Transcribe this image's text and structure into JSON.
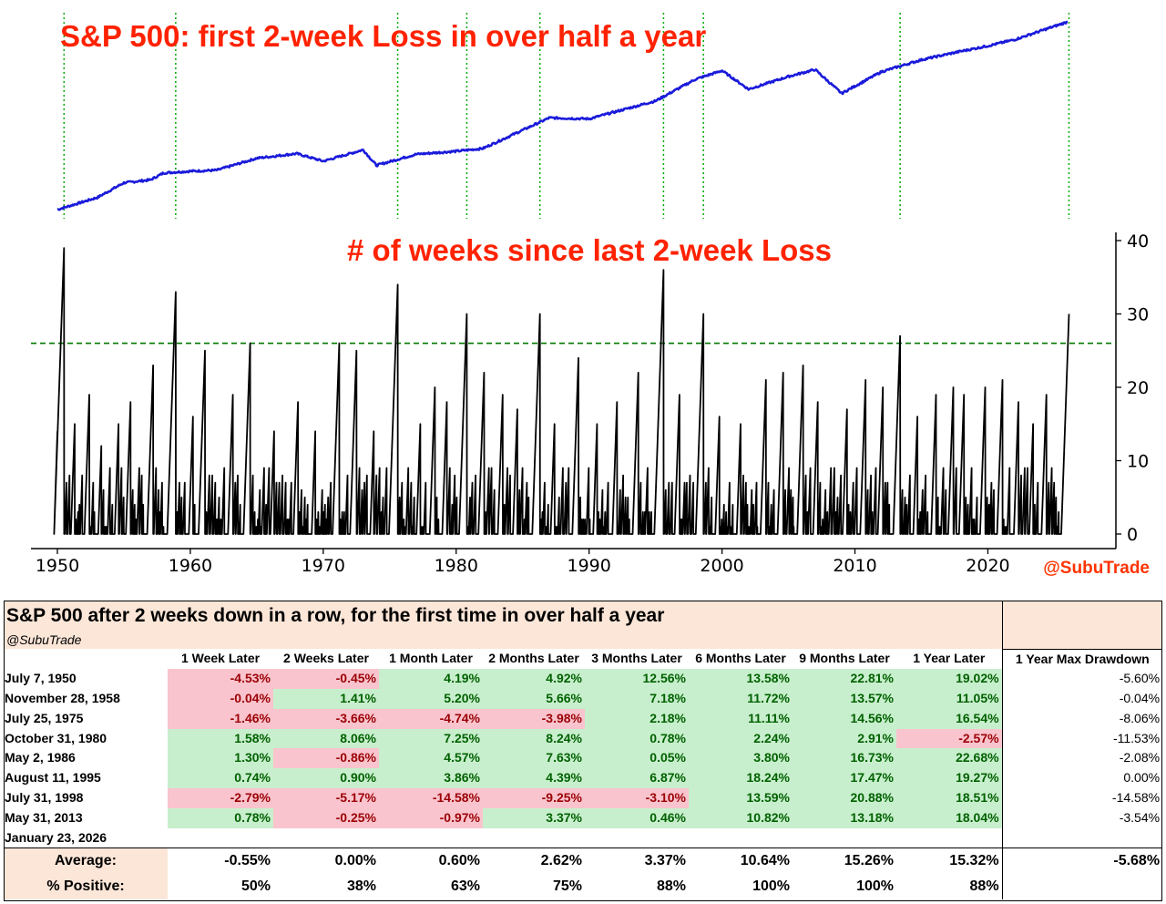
{
  "top_title": "S&P 500: first 2-week Loss in over half a year",
  "mid_title": "# of weeks since last 2-week Loss",
  "credit": "@SubuTrade",
  "colors": {
    "title": "#ff2200",
    "price_line": "#1a1adb",
    "weeks_line": "#000000",
    "vline": "#00aa00",
    "threshold": "#007700",
    "pos_bg": "#c8efcd",
    "neg_bg": "#f9c4cd",
    "header_bg": "#fbe6d8"
  },
  "chart_data": [
    {
      "type": "line",
      "title": "S&P 500: first 2-week Loss in over half a year",
      "yscale": "log",
      "xlim": [
        1950,
        2026
      ],
      "series": [
        {
          "name": "S&P 500",
          "x": [
            1950,
            1953,
            1955,
            1957,
            1958,
            1960,
            1962,
            1965,
            1968,
            1970,
            1973,
            1974,
            1977,
            1980,
            1982,
            1987,
            1990,
            1995,
            1998,
            2000,
            2002,
            2005,
            2007,
            2009,
            2012,
            2015,
            2018,
            2020,
            2022,
            2026
          ],
          "y": [
            17,
            25,
            40,
            44,
            55,
            58,
            60,
            88,
            102,
            80,
            115,
            70,
            100,
            110,
            120,
            320,
            310,
            550,
            1100,
            1450,
            800,
            1200,
            1500,
            700,
            1400,
            2050,
            2700,
            3200,
            3900,
            6900
          ]
        }
      ],
      "event_markers": [
        1950.5,
        1958.9,
        1975.6,
        1980.8,
        1986.3,
        1995.6,
        1998.6,
        2013.4,
        2026.1
      ]
    },
    {
      "type": "line",
      "title": "# of weeks since last 2-week Loss",
      "xlim": [
        1950,
        2026
      ],
      "ylim": [
        0,
        40
      ],
      "xticks": [
        "1950",
        "1960",
        "1970",
        "1980",
        "1990",
        "2000",
        "2010",
        "2020"
      ],
      "yticks": [
        "0",
        "10",
        "20",
        "30",
        "40"
      ],
      "threshold": 26,
      "peaks": [
        {
          "x": 1950.5,
          "y": 39
        },
        {
          "x": 1951.3,
          "y": 15
        },
        {
          "x": 1952.4,
          "y": 19
        },
        {
          "x": 1953.3,
          "y": 12
        },
        {
          "x": 1954.6,
          "y": 15
        },
        {
          "x": 1955.5,
          "y": 18
        },
        {
          "x": 1957.2,
          "y": 23
        },
        {
          "x": 1958.9,
          "y": 33
        },
        {
          "x": 1960.2,
          "y": 16
        },
        {
          "x": 1961.1,
          "y": 25
        },
        {
          "x": 1963.2,
          "y": 19
        },
        {
          "x": 1964.5,
          "y": 26
        },
        {
          "x": 1966.3,
          "y": 14
        },
        {
          "x": 1968.1,
          "y": 18
        },
        {
          "x": 1969.4,
          "y": 14
        },
        {
          "x": 1971.2,
          "y": 26
        },
        {
          "x": 1972.5,
          "y": 25
        },
        {
          "x": 1973.8,
          "y": 14
        },
        {
          "x": 1975.6,
          "y": 34
        },
        {
          "x": 1977.3,
          "y": 15
        },
        {
          "x": 1978.4,
          "y": 20
        },
        {
          "x": 1979.3,
          "y": 18
        },
        {
          "x": 1980.8,
          "y": 30
        },
        {
          "x": 1982.1,
          "y": 22
        },
        {
          "x": 1983.5,
          "y": 19
        },
        {
          "x": 1984.6,
          "y": 17
        },
        {
          "x": 1986.3,
          "y": 30
        },
        {
          "x": 1987.4,
          "y": 15
        },
        {
          "x": 1989.2,
          "y": 24
        },
        {
          "x": 1990.6,
          "y": 15
        },
        {
          "x": 1992.1,
          "y": 18
        },
        {
          "x": 1993.7,
          "y": 22
        },
        {
          "x": 1995.6,
          "y": 36
        },
        {
          "x": 1996.8,
          "y": 19
        },
        {
          "x": 1998.6,
          "y": 30
        },
        {
          "x": 1999.8,
          "y": 16
        },
        {
          "x": 2001.4,
          "y": 15
        },
        {
          "x": 2003.3,
          "y": 21
        },
        {
          "x": 2004.6,
          "y": 22
        },
        {
          "x": 2006.1,
          "y": 23
        },
        {
          "x": 2007.2,
          "y": 18
        },
        {
          "x": 2009.4,
          "y": 17
        },
        {
          "x": 2010.8,
          "y": 21
        },
        {
          "x": 2012.1,
          "y": 20
        },
        {
          "x": 2013.4,
          "y": 27
        },
        {
          "x": 2014.7,
          "y": 16
        },
        {
          "x": 2016.1,
          "y": 19
        },
        {
          "x": 2017.4,
          "y": 20
        },
        {
          "x": 2018.2,
          "y": 19
        },
        {
          "x": 2019.8,
          "y": 20
        },
        {
          "x": 2021.1,
          "y": 21
        },
        {
          "x": 2022.3,
          "y": 18
        },
        {
          "x": 2023.4,
          "y": 15
        },
        {
          "x": 2024.4,
          "y": 19
        },
        {
          "x": 2026.1,
          "y": 30
        }
      ]
    },
    {
      "type": "table",
      "title": "S&P 500 after 2 weeks down in a row, for the first time in over half a year",
      "subtitle": "@SubuTrade",
      "columns": [
        "1 Week Later",
        "2 Weeks Later",
        "1 Month Later",
        "2 Months Later",
        "3 Months Later",
        "6 Months Later",
        "9 Months Later",
        "1 Year Later"
      ],
      "extra_column": "1 Year Max Drawdown",
      "rows": [
        {
          "date": "July 7, 1950",
          "values": [
            "-4.53%",
            "-0.45%",
            "4.19%",
            "4.92%",
            "12.56%",
            "13.58%",
            "22.81%",
            "19.02%"
          ],
          "drawdown": "-5.60%"
        },
        {
          "date": "November 28, 1958",
          "values": [
            "-0.04%",
            "1.41%",
            "5.20%",
            "5.66%",
            "7.18%",
            "11.72%",
            "13.57%",
            "11.05%"
          ],
          "drawdown": "-0.04%"
        },
        {
          "date": "July 25, 1975",
          "values": [
            "-1.46%",
            "-3.66%",
            "-4.74%",
            "-3.98%",
            "2.18%",
            "11.11%",
            "14.56%",
            "16.54%"
          ],
          "drawdown": "-8.06%"
        },
        {
          "date": "October 31, 1980",
          "values": [
            "1.58%",
            "8.06%",
            "7.25%",
            "8.24%",
            "0.78%",
            "2.24%",
            "2.91%",
            "-2.57%"
          ],
          "drawdown": "-11.53%"
        },
        {
          "date": "May 2, 1986",
          "values": [
            "1.30%",
            "-0.86%",
            "4.57%",
            "7.63%",
            "0.05%",
            "3.80%",
            "16.73%",
            "22.68%"
          ],
          "drawdown": "-2.08%"
        },
        {
          "date": "August 11, 1995",
          "values": [
            "0.74%",
            "0.90%",
            "3.86%",
            "4.39%",
            "6.87%",
            "18.24%",
            "17.47%",
            "19.27%"
          ],
          "drawdown": "0.00%"
        },
        {
          "date": "July 31, 1998",
          "values": [
            "-2.79%",
            "-5.17%",
            "-14.58%",
            "-9.25%",
            "-3.10%",
            "13.59%",
            "20.88%",
            "18.51%"
          ],
          "drawdown": "-14.58%"
        },
        {
          "date": "May 31, 2013",
          "values": [
            "0.78%",
            "-0.25%",
            "-0.97%",
            "3.37%",
            "0.46%",
            "10.82%",
            "13.18%",
            "18.04%"
          ],
          "drawdown": "-3.54%"
        },
        {
          "date": "January 23, 2026",
          "values": [
            "",
            "",
            "",
            "",
            "",
            "",
            "",
            ""
          ],
          "drawdown": ""
        }
      ],
      "average_label": "Average:",
      "average": [
        "-0.55%",
        "0.00%",
        "0.60%",
        "2.62%",
        "3.37%",
        "10.64%",
        "15.26%",
        "15.32%"
      ],
      "average_drawdown": "-5.68%",
      "positive_label": "% Positive:",
      "positive": [
        "50%",
        "38%",
        "63%",
        "75%",
        "88%",
        "100%",
        "100%",
        "88%"
      ]
    }
  ]
}
